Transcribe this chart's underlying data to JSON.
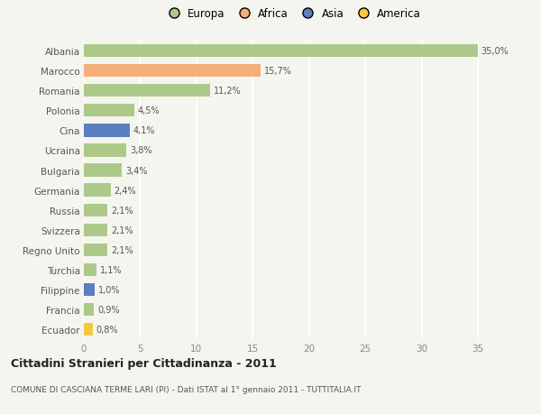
{
  "countries": [
    "Albania",
    "Marocco",
    "Romania",
    "Polonia",
    "Cina",
    "Ucraina",
    "Bulgaria",
    "Germania",
    "Russia",
    "Svizzera",
    "Regno Unito",
    "Turchia",
    "Filippine",
    "Francia",
    "Ecuador"
  ],
  "values": [
    35.0,
    15.7,
    11.2,
    4.5,
    4.1,
    3.8,
    3.4,
    2.4,
    2.1,
    2.1,
    2.1,
    1.1,
    1.0,
    0.9,
    0.8
  ],
  "labels": [
    "35,0%",
    "15,7%",
    "11,2%",
    "4,5%",
    "4,1%",
    "3,8%",
    "3,4%",
    "2,4%",
    "2,1%",
    "2,1%",
    "2,1%",
    "1,1%",
    "1,0%",
    "0,9%",
    "0,8%"
  ],
  "colors": [
    "#adc98a",
    "#f5b07a",
    "#adc98a",
    "#adc98a",
    "#5b7fc0",
    "#adc98a",
    "#adc98a",
    "#adc98a",
    "#adc98a",
    "#adc98a",
    "#adc98a",
    "#adc98a",
    "#5b7fc0",
    "#adc98a",
    "#f5c842"
  ],
  "legend_labels": [
    "Europa",
    "Africa",
    "Asia",
    "America"
  ],
  "legend_colors": [
    "#adc98a",
    "#f5b07a",
    "#5b7fc0",
    "#f5c842"
  ],
  "title": "Cittadini Stranieri per Cittadinanza - 2011",
  "subtitle": "COMUNE DI CASCIANA TERME LARI (PI) - Dati ISTAT al 1° gennaio 2011 - TUTTITALIA.IT",
  "xlim": [
    0,
    37
  ],
  "xticks": [
    0,
    5,
    10,
    15,
    20,
    25,
    30,
    35
  ],
  "background_color": "#f5f5f0",
  "grid_color": "#ffffff",
  "bar_height": 0.65
}
